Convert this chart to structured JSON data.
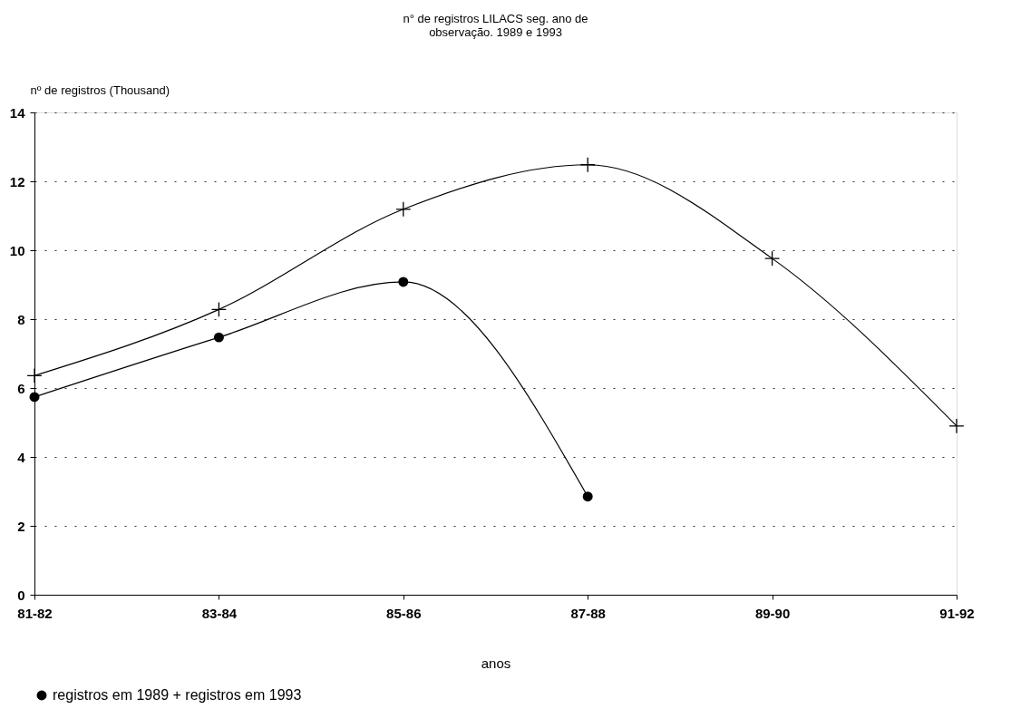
{
  "chart_data": {
    "type": "line",
    "title": [
      "n° de registros LILACS seg. ano de",
      "observação. 1989 e 1993"
    ],
    "ylabel": "nº de registros (Thousand)",
    "xlabel": "anos",
    "categories": [
      "81-82",
      "83-84",
      "85-86",
      "87-88",
      "89-90",
      "91-92"
    ],
    "series": [
      {
        "name": "registros em 1989 + registros em 1993",
        "color": "#000000",
        "marker": "circle",
        "values": [
          5.74,
          7.47,
          9.08,
          2.85,
          null,
          null
        ]
      },
      {
        "color": "#000000",
        "marker": "cross",
        "values": [
          6.36,
          8.28,
          11.19,
          12.48,
          9.76,
          4.9
        ]
      }
    ],
    "ylim": [
      0,
      14
    ],
    "yticks": [
      0,
      2,
      4,
      6,
      8,
      10,
      12,
      14
    ],
    "grid": "y",
    "legend": "bottom",
    "line_style": "solid"
  }
}
